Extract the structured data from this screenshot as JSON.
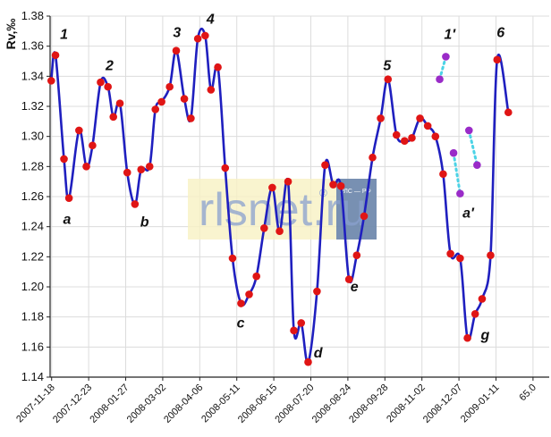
{
  "chart_data": {
    "type": "line",
    "ylabel": "Rv,‰",
    "ylim": [
      1.14,
      1.38
    ],
    "y_ticks": [
      "1.14",
      "1.16",
      "1.18",
      "1.20",
      "1.22",
      "1.24",
      "1.26",
      "1.28",
      "1.30",
      "1.32",
      "1.34",
      "1.36",
      "1.38"
    ],
    "x_range": [
      2007.876,
      2009.17
    ],
    "x_ticks": [
      {
        "label": "2007-11-18",
        "x": 2007.88
      },
      {
        "label": "2007-12-23",
        "x": 2007.976
      },
      {
        "label": "2008-01-27",
        "x": 2008.072
      },
      {
        "label": "2008-03-02",
        "x": 2008.168
      },
      {
        "label": "2008-04-06",
        "x": 2008.264
      },
      {
        "label": "2008-05-11",
        "x": 2008.36
      },
      {
        "label": "2008-06-15",
        "x": 2008.456
      },
      {
        "label": "2008-07-20",
        "x": 2008.552
      },
      {
        "label": "2008-08-24",
        "x": 2008.648
      },
      {
        "label": "2008-09-28",
        "x": 2008.744
      },
      {
        "label": "2008-11-02",
        "x": 2008.84
      },
      {
        "label": "2008-12-07",
        "x": 2008.936
      },
      {
        "label": "2009-01-11",
        "x": 2009.032
      },
      {
        "label": "65.0",
        "x": 2009.128
      }
    ],
    "grid": true,
    "series": [
      {
        "color": "#1f1fbf",
        "marker_color": "#e01515",
        "points": [
          [
            2007.879,
            1.337
          ],
          [
            2007.89,
            1.354
          ],
          [
            2007.912,
            1.285
          ],
          [
            2007.925,
            1.259
          ],
          [
            2007.951,
            1.304
          ],
          [
            2007.97,
            1.28
          ],
          [
            2007.986,
            1.294
          ],
          [
            2008.007,
            1.336
          ],
          [
            2008.026,
            1.333
          ],
          [
            2008.04,
            1.313
          ],
          [
            2008.057,
            1.322
          ],
          [
            2008.076,
            1.276
          ],
          [
            2008.096,
            1.255
          ],
          [
            2008.112,
            1.278
          ],
          [
            2008.134,
            1.28
          ],
          [
            2008.149,
            1.318
          ],
          [
            2008.165,
            1.323
          ],
          [
            2008.186,
            1.333
          ],
          [
            2008.203,
            1.357
          ],
          [
            2008.224,
            1.325
          ],
          [
            2008.241,
            1.312
          ],
          [
            2008.259,
            1.365
          ],
          [
            2008.278,
            1.367
          ],
          [
            2008.293,
            1.331
          ],
          [
            2008.311,
            1.346
          ],
          [
            2008.33,
            1.279
          ],
          [
            2008.349,
            1.219
          ],
          [
            2008.371,
            1.189
          ],
          [
            2008.392,
            1.195
          ],
          [
            2008.411,
            1.207
          ],
          [
            2008.431,
            1.239
          ],
          [
            2008.452,
            1.266
          ],
          [
            2008.471,
            1.237
          ],
          [
            2008.493,
            1.27
          ],
          [
            2008.508,
            1.171
          ],
          [
            2008.527,
            1.176
          ],
          [
            2008.545,
            1.15
          ],
          [
            2008.568,
            1.197
          ],
          [
            2008.589,
            1.281
          ],
          [
            2008.61,
            1.268
          ],
          [
            2008.63,
            1.267
          ],
          [
            2008.651,
            1.205
          ],
          [
            2008.671,
            1.221
          ],
          [
            2008.69,
            1.247
          ],
          [
            2008.712,
            1.286
          ],
          [
            2008.733,
            1.312
          ],
          [
            2008.752,
            1.338
          ],
          [
            2008.774,
            1.301
          ],
          [
            2008.795,
            1.297
          ],
          [
            2008.814,
            1.299
          ],
          [
            2008.835,
            1.312
          ],
          [
            2008.855,
            1.307
          ],
          [
            2008.875,
            1.3
          ],
          [
            2008.895,
            1.275
          ],
          [
            2008.914,
            1.222
          ],
          [
            2008.939,
            1.219
          ],
          [
            2008.958,
            1.166
          ],
          [
            2008.978,
            1.182
          ],
          [
            2008.996,
            1.192
          ],
          [
            2009.018,
            1.221
          ],
          [
            2009.035,
            1.351
          ],
          [
            2009.064,
            1.316
          ]
        ]
      },
      {
        "color": "#4cd3e6",
        "style": "dotted",
        "marker_color": "#9a2bc8",
        "points": [
          [
            2008.886,
            1.338
          ],
          [
            2008.902,
            1.353
          ],
          [
            2008.922,
            1.289
          ],
          [
            2008.939,
            1.262
          ],
          [
            2008.962,
            1.304
          ],
          [
            2008.983,
            1.281
          ]
        ]
      }
    ],
    "annotations": [
      {
        "text": "1",
        "x": 2007.912,
        "y": 1.365
      },
      {
        "text": "2",
        "x": 2008.03,
        "y": 1.344
      },
      {
        "text": "3",
        "x": 2008.205,
        "y": 1.366
      },
      {
        "text": "4",
        "x": 2008.292,
        "y": 1.375
      },
      {
        "text": "5",
        "x": 2008.75,
        "y": 1.344
      },
      {
        "text": "1′",
        "x": 2008.912,
        "y": 1.365
      },
      {
        "text": "6",
        "x": 2009.044,
        "y": 1.366
      },
      {
        "text": "a",
        "x": 2007.92,
        "y": 1.242
      },
      {
        "text": "b",
        "x": 2008.121,
        "y": 1.24
      },
      {
        "text": "c",
        "x": 2008.37,
        "y": 1.173
      },
      {
        "text": "d",
        "x": 2008.571,
        "y": 1.153
      },
      {
        "text": "e",
        "x": 2008.665,
        "y": 1.197
      },
      {
        "text": "a′",
        "x": 2008.96,
        "y": 1.246
      },
      {
        "text": "g",
        "x": 2009.004,
        "y": 1.165
      }
    ]
  },
  "watermark": {
    "text": "rlsnet.ru",
    "registered": "®",
    "badge_text": "РЛС — РФ"
  }
}
